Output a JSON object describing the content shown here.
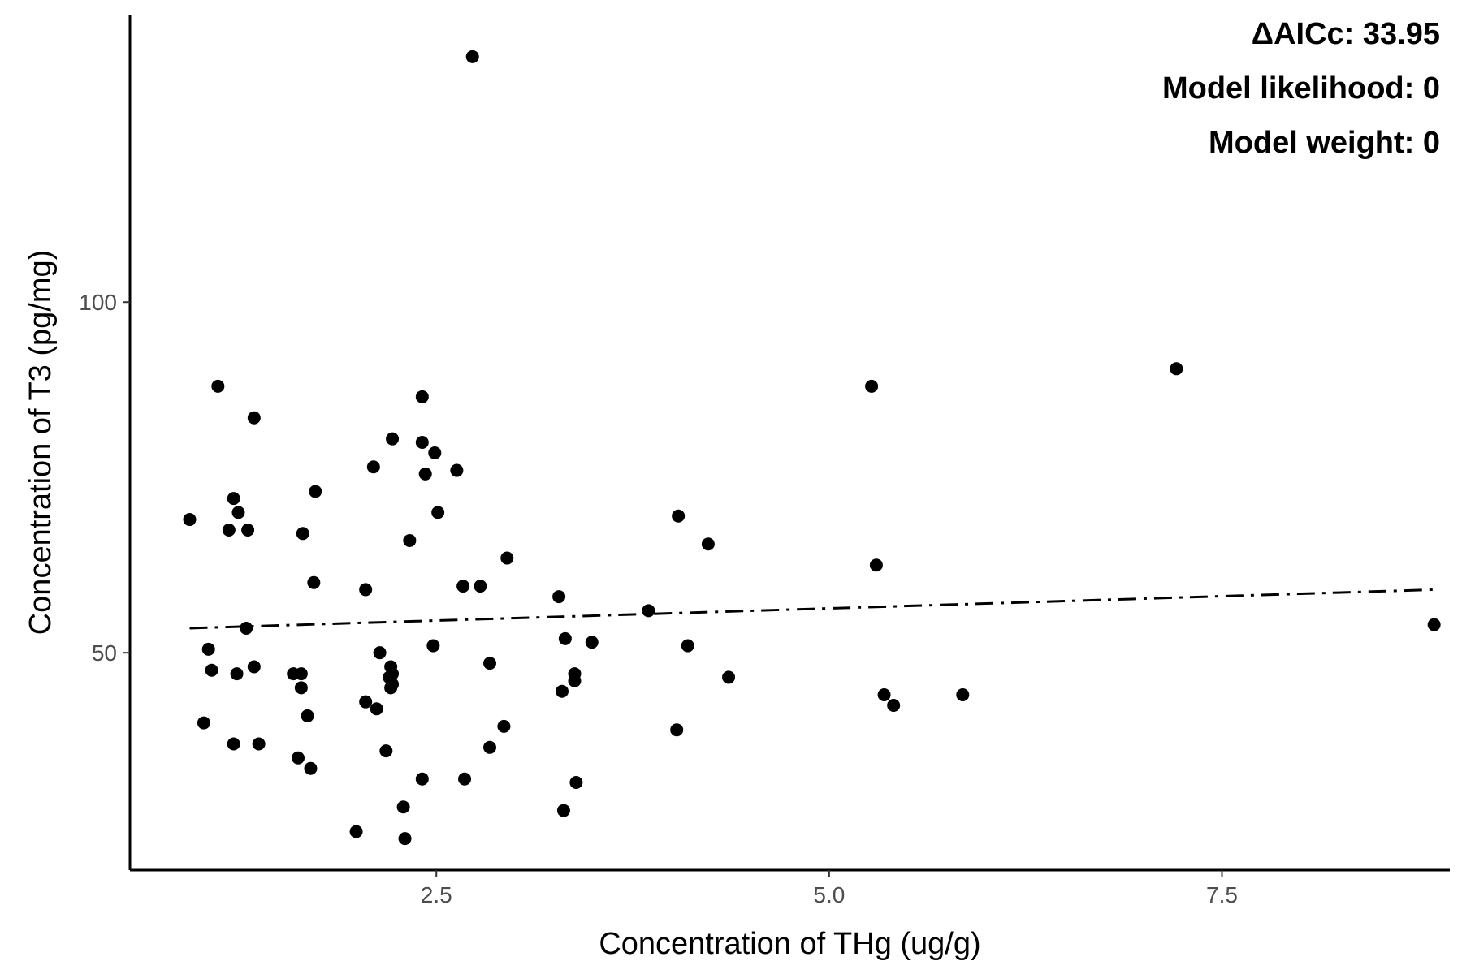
{
  "chart_data": {
    "type": "scatter",
    "title": "",
    "xlabel": "Concentration of THg (ug/g)",
    "ylabel": "Concentration of T3 (pg/mg)",
    "xlim": [
      0.55,
      8.95
    ],
    "ylim": [
      19,
      141
    ],
    "x_ticks": [
      2.5,
      5.0,
      7.5
    ],
    "x_tick_labels": [
      "2.5",
      "5.0",
      "7.5"
    ],
    "y_ticks": [
      50,
      100
    ],
    "y_tick_labels": [
      "50",
      "100"
    ],
    "grid": false,
    "legend": "none",
    "point_color": "#000000",
    "points": [
      {
        "x": 0.93,
        "y": 69.0
      },
      {
        "x": 1.05,
        "y": 50.5
      },
      {
        "x": 1.07,
        "y": 47.5
      },
      {
        "x": 1.02,
        "y": 40.0
      },
      {
        "x": 1.11,
        "y": 88.0
      },
      {
        "x": 1.18,
        "y": 67.5
      },
      {
        "x": 1.21,
        "y": 72.0
      },
      {
        "x": 1.21,
        "y": 37.0
      },
      {
        "x": 1.23,
        "y": 47.0
      },
      {
        "x": 1.24,
        "y": 70.0
      },
      {
        "x": 1.29,
        "y": 53.5
      },
      {
        "x": 1.3,
        "y": 67.5
      },
      {
        "x": 1.34,
        "y": 48.0
      },
      {
        "x": 1.34,
        "y": 83.5
      },
      {
        "x": 1.37,
        "y": 37.0
      },
      {
        "x": 1.59,
        "y": 47.0
      },
      {
        "x": 1.62,
        "y": 35.0
      },
      {
        "x": 1.64,
        "y": 47.0
      },
      {
        "x": 1.64,
        "y": 45.0
      },
      {
        "x": 1.65,
        "y": 67.0
      },
      {
        "x": 1.68,
        "y": 41.0
      },
      {
        "x": 1.7,
        "y": 33.5
      },
      {
        "x": 1.72,
        "y": 60.0
      },
      {
        "x": 1.73,
        "y": 73.0
      },
      {
        "x": 1.99,
        "y": 24.5
      },
      {
        "x": 2.05,
        "y": 59.0
      },
      {
        "x": 2.05,
        "y": 43.0
      },
      {
        "x": 2.1,
        "y": 76.5
      },
      {
        "x": 2.12,
        "y": 42.0
      },
      {
        "x": 2.14,
        "y": 50.0
      },
      {
        "x": 2.18,
        "y": 36.0
      },
      {
        "x": 2.2,
        "y": 46.5
      },
      {
        "x": 2.21,
        "y": 48.0
      },
      {
        "x": 2.22,
        "y": 80.5
      },
      {
        "x": 2.22,
        "y": 47.0
      },
      {
        "x": 2.22,
        "y": 45.5
      },
      {
        "x": 2.21,
        "y": 45.0
      },
      {
        "x": 2.29,
        "y": 28.0
      },
      {
        "x": 2.3,
        "y": 23.5
      },
      {
        "x": 2.33,
        "y": 66.0
      },
      {
        "x": 2.41,
        "y": 80.0
      },
      {
        "x": 2.41,
        "y": 86.5
      },
      {
        "x": 2.41,
        "y": 32.0
      },
      {
        "x": 2.43,
        "y": 75.5
      },
      {
        "x": 2.48,
        "y": 51.0
      },
      {
        "x": 2.49,
        "y": 78.5
      },
      {
        "x": 2.51,
        "y": 70.0
      },
      {
        "x": 2.63,
        "y": 76.0
      },
      {
        "x": 2.67,
        "y": 59.5
      },
      {
        "x": 2.68,
        "y": 32.0
      },
      {
        "x": 2.73,
        "y": 135.0
      },
      {
        "x": 2.78,
        "y": 59.5
      },
      {
        "x": 2.84,
        "y": 48.5
      },
      {
        "x": 2.84,
        "y": 36.5
      },
      {
        "x": 2.93,
        "y": 39.5
      },
      {
        "x": 2.95,
        "y": 63.5
      },
      {
        "x": 3.28,
        "y": 58.0
      },
      {
        "x": 3.3,
        "y": 44.5
      },
      {
        "x": 3.31,
        "y": 27.5
      },
      {
        "x": 3.32,
        "y": 52.0
      },
      {
        "x": 3.38,
        "y": 47.0
      },
      {
        "x": 3.38,
        "y": 46.0
      },
      {
        "x": 3.39,
        "y": 31.5
      },
      {
        "x": 3.49,
        "y": 51.5
      },
      {
        "x": 3.85,
        "y": 56.0
      },
      {
        "x": 4.04,
        "y": 69.5
      },
      {
        "x": 4.03,
        "y": 39.0
      },
      {
        "x": 4.1,
        "y": 51.0
      },
      {
        "x": 4.23,
        "y": 65.5
      },
      {
        "x": 4.36,
        "y": 46.5
      },
      {
        "x": 5.27,
        "y": 88.0
      },
      {
        "x": 5.3,
        "y": 62.5
      },
      {
        "x": 5.35,
        "y": 44.0
      },
      {
        "x": 5.41,
        "y": 42.5
      },
      {
        "x": 5.85,
        "y": 44.0
      },
      {
        "x": 7.21,
        "y": 90.5
      },
      {
        "x": 8.85,
        "y": 54.0
      }
    ],
    "trend_line": {
      "style": "dashdot",
      "x": [
        0.93,
        8.85
      ],
      "y": [
        53.5,
        59.0
      ]
    },
    "annotations": [
      "ΔAICc: 33.95",
      "Model likelihood: 0",
      "Model weight: 0"
    ]
  }
}
